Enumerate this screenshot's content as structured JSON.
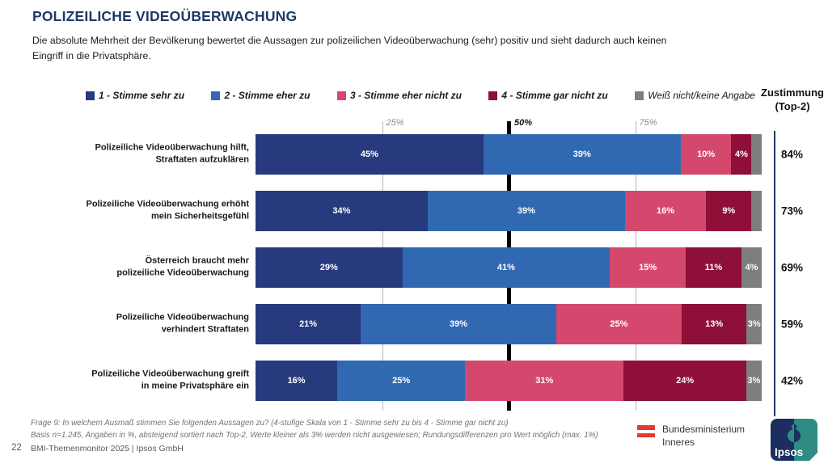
{
  "page": {
    "title": "POLIZEILICHE VIDEOÜBERWACHUNG",
    "subtitle": "Die absolute Mehrheit der Bevölkerung bewertet die Aussagen zur polizeilichen Videoüberwachung (sehr) positiv und sieht dadurch auch keinen\nEingriff in die Privatsphäre."
  },
  "legend": {
    "items": [
      {
        "label": "1 - Stimme sehr zu",
        "color": "#273A7D",
        "muted": false
      },
      {
        "label": "2 - Stimme eher zu",
        "color": "#3069B1",
        "muted": false
      },
      {
        "label": "3 - Stimme eher nicht zu",
        "color": "#D5486E",
        "muted": false
      },
      {
        "label": "4 - Stimme gar nicht zu",
        "color": "#8E1038",
        "muted": false
      },
      {
        "label": "Weiß nicht/keine Angabe",
        "color": "#7E7E7E",
        "muted": true
      }
    ]
  },
  "top2_header": {
    "line1": "Zustimmung",
    "line2": "(Top-2)"
  },
  "chart_data": {
    "type": "bar",
    "subtype": "horizontal-stacked-100",
    "title": "Polizeiliche Videoüberwachung – Zustimmung zu Aussagen",
    "categories": [
      "Polizeiliche Videoüberwachung hilft,\nStraftaten aufzuklären",
      "Polizeiliche Videoüberwachung erhöht\nmein Sicherheitsgefühl",
      "Österreich braucht mehr\npolizeiliche Videoüberwachung",
      "Polizeiliche Videoüberwachung\nverhindert Straftaten",
      "Polizeiliche Videoüberwachung greift\nin meine Privatsphäre ein"
    ],
    "series": [
      {
        "name": "1 - Stimme sehr zu",
        "color": "#273A7D",
        "values": [
          45,
          34,
          29,
          21,
          16
        ]
      },
      {
        "name": "2 - Stimme eher zu",
        "color": "#3069B1",
        "values": [
          39,
          39,
          41,
          39,
          25
        ]
      },
      {
        "name": "3 - Stimme eher nicht zu",
        "color": "#D5486E",
        "values": [
          10,
          16,
          15,
          25,
          31
        ]
      },
      {
        "name": "4 - Stimme gar nicht zu",
        "color": "#8E1038",
        "values": [
          4,
          9,
          11,
          13,
          24
        ]
      },
      {
        "name": "Weiß nicht/keine Angabe",
        "color": "#7E7E7E",
        "values": [
          2,
          2,
          4,
          3,
          3
        ]
      }
    ],
    "top2": [
      "84%",
      "73%",
      "69%",
      "59%",
      "42%"
    ],
    "gridlines": [
      "25%",
      "50%",
      "75%"
    ],
    "xlim": [
      0,
      100
    ],
    "label_suffix": "%",
    "min_label_value": 3,
    "legend_position": "top",
    "value_label_color": "#ffffff"
  },
  "footnote": {
    "text": "Frage 9:  In welchem Ausmaß stimmen Sie folgenden Aussagen zu? (4-stufige Skala von 1 - Stimme sehr zu bis 4 - Stimme gar nicht zu)\nBasis n=1.245, Angaben in %, absteigend sortiert nach Top-2, Werte kleiner als 3% werden nicht ausgewiesen; Rundungsdifferenzen pro Wert möglich (max. 1%)"
  },
  "footer": {
    "page_number": "22",
    "text": "BMI-Themenmonitor 2025 |  Ipsos GmbH"
  },
  "logos": {
    "bmi": {
      "line1": "Bundesministerium",
      "line2": "Inneres"
    },
    "ipsos": {
      "word": "Ipsos",
      "navy": "#1B2E5E",
      "teal": "#2E8C85"
    }
  },
  "colors": {
    "title": "#1F3864",
    "grid_major": "#000000",
    "grid_minor": "#b3b3b3",
    "top2_divider": "#24356E"
  }
}
